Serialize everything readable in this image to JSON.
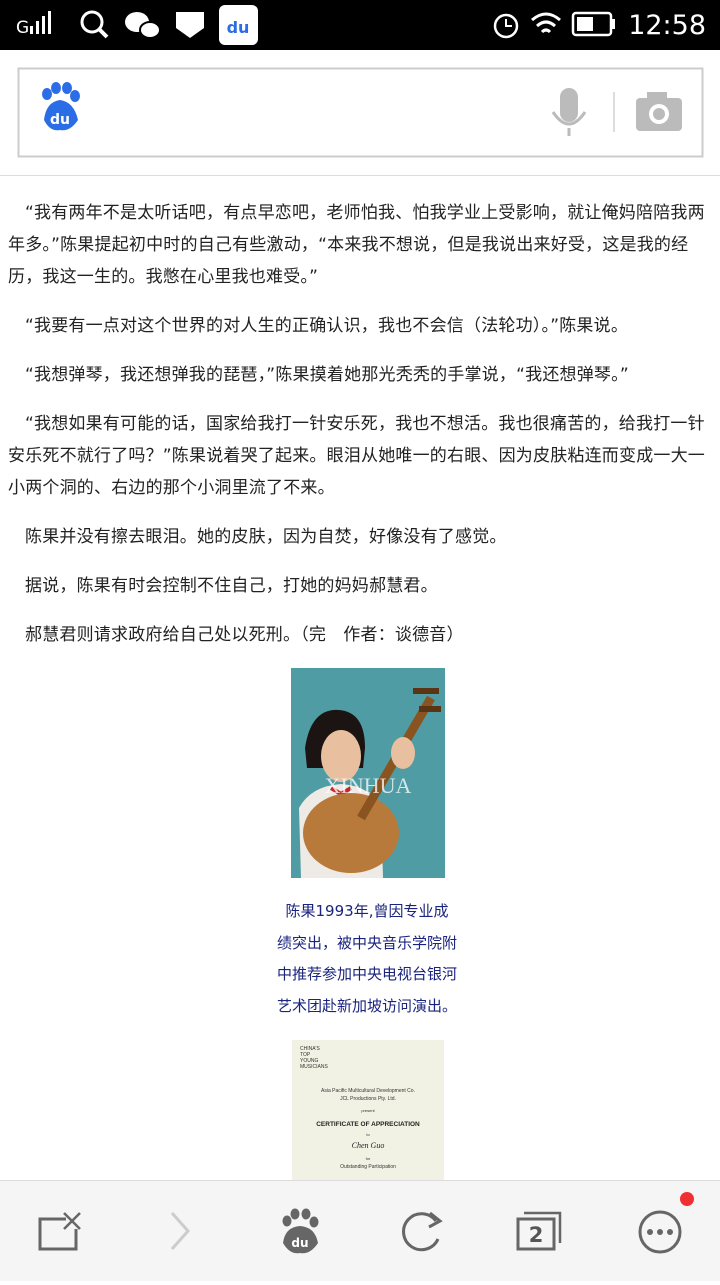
{
  "status_bar": {
    "network": "G",
    "time": "12:58"
  },
  "search_bar": {
    "logo": "du"
  },
  "article": {
    "paragraphs": [
      "“我有两年不是太听话吧，有点早恋吧，老师怕我、怕我学业上受影响，就让俺妈陪陪我两年多。”陈果提起初中时的自己有些激动，“本来我不想说，但是我说出来好受，这是我的经历，我这一生的。我憋在心里我也难受。”",
      "“我要有一点对这个世界的对人生的正确认识，我也不会信（法轮功）。”陈果说。",
      "“我想弹琴，我还想弹我的琵琶，”陈果摸着她那光秃秃的手掌说，“我还想弹琴。”",
      "“我想如果有可能的话，国家给我打一针安乐死，我也不想活。我也很痛苦的，给我打一针安乐死不就行了吗？”陈果说着哭了起来。眼泪从她唯一的右眼、因为皮肤粘连而变成一大一小两个洞的、右边的那个小洞里流了不来。",
      "陈果并没有擦去眼泪。她的皮肤，因为自焚，好像没有了感觉。",
      "据说，陈果有时会控制不住自己，打她的妈妈郝慧君。",
      "郝慧君则请求政府给自己处以死刑。（完　作者：谈德音）"
    ],
    "photo": {
      "watermark": "XINHUA",
      "caption": [
        "陈果1993年,曾因专业成",
        "绩突出，被中央音乐学院附",
        "中推荐参加中央电视台银河",
        "艺术团赴新加坡访问演出。"
      ]
    },
    "certificate": {
      "corner": [
        "CHINA'S",
        "TOP",
        "YOUNG",
        "MUSICIANS"
      ],
      "lines": [
        "Asia Pacific Multicultural Development Co.",
        "JCL Productions Pty. Ltd.",
        "present",
        "CERTIFICATE OF APPRECIATION",
        "to",
        "Chen Guo",
        "for",
        "Outstanding Participation"
      ]
    }
  },
  "toolbar": {
    "logo": "du",
    "tab_count": "2"
  }
}
